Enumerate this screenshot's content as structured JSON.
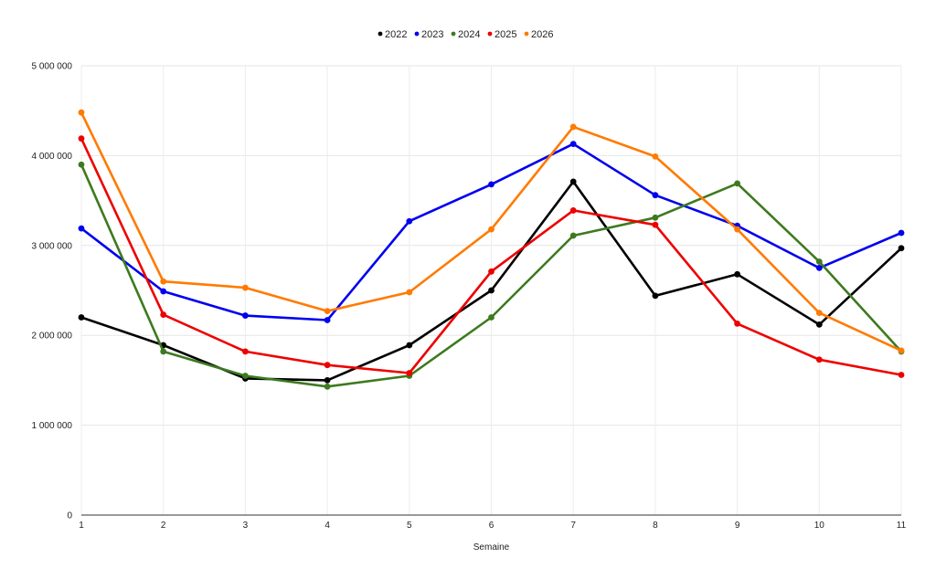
{
  "chart_data": {
    "type": "line",
    "title": "",
    "xlabel": "Semaine",
    "ylabel": "",
    "x": [
      1,
      2,
      3,
      4,
      5,
      6,
      7,
      8,
      9,
      10,
      11
    ],
    "x_tick_labels": [
      "1",
      "2",
      "3",
      "4",
      "5",
      "6",
      "7",
      "8",
      "9",
      "10",
      "11"
    ],
    "ylim": [
      0,
      5000000
    ],
    "y_ticks": [
      0,
      1000000,
      2000000,
      3000000,
      4000000,
      5000000
    ],
    "y_tick_labels": [
      "0",
      "1 000 000",
      "2 000 000",
      "3 000 000",
      "4 000 000",
      "5 000 000"
    ],
    "grid": true,
    "legend_position": "top-center",
    "series": [
      {
        "name": "2022",
        "color": "#000000",
        "values": [
          2200000,
          1890000,
          1520000,
          1500000,
          1890000,
          2500000,
          3710000,
          2440000,
          2680000,
          2120000,
          2970000
        ]
      },
      {
        "name": "2023",
        "color": "#0000ee",
        "values": [
          3190000,
          2490000,
          2220000,
          2170000,
          3270000,
          3680000,
          4130000,
          3560000,
          3220000,
          2750000,
          3140000
        ]
      },
      {
        "name": "2024",
        "color": "#3d7a1f",
        "values": [
          3900000,
          1820000,
          1550000,
          1430000,
          1550000,
          2200000,
          3110000,
          3310000,
          3690000,
          2820000,
          1820000
        ]
      },
      {
        "name": "2025",
        "color": "#ee0000",
        "values": [
          4190000,
          2230000,
          1820000,
          1670000,
          1580000,
          2710000,
          3390000,
          3230000,
          2130000,
          1730000,
          1560000
        ]
      },
      {
        "name": "2026",
        "color": "#ff7a00",
        "values": [
          4480000,
          2600000,
          2530000,
          2270000,
          2480000,
          3180000,
          4320000,
          3990000,
          3180000,
          2250000,
          1830000
        ]
      }
    ]
  }
}
